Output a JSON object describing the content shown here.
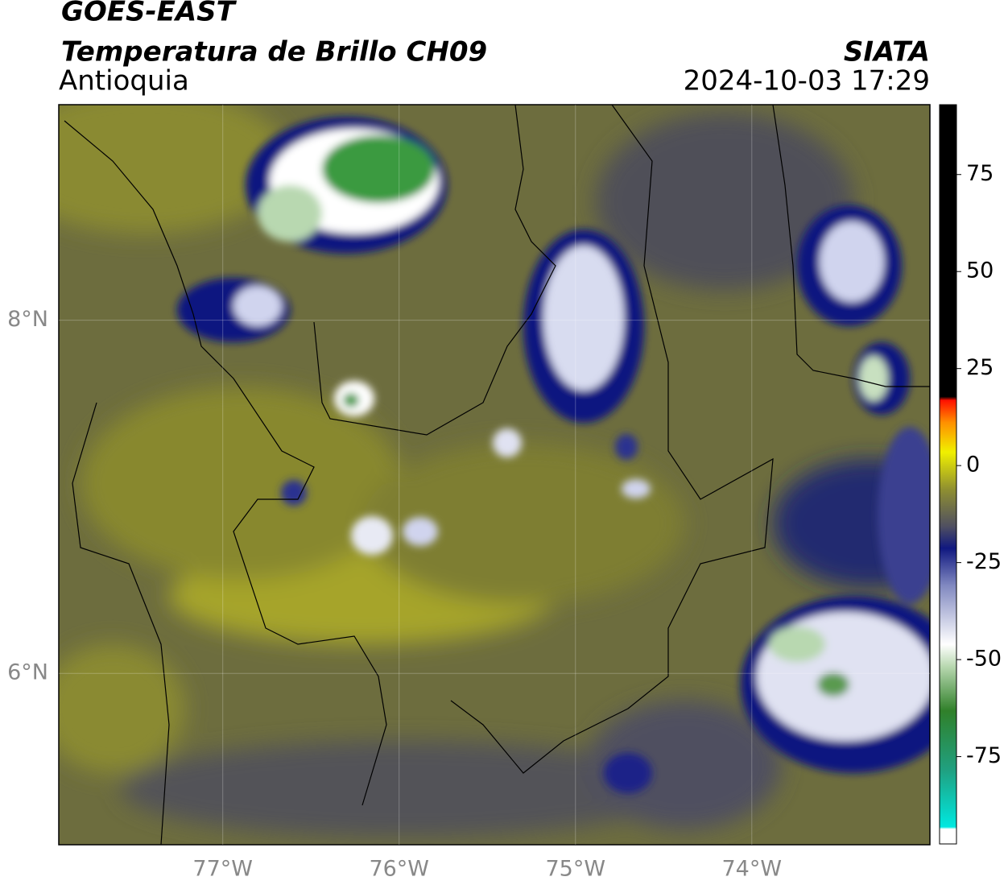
{
  "header": {
    "title": "GOES-EAST",
    "subtitle": "Temperatura de Brillo CH09",
    "region": "Antioquia",
    "source": "SIATA",
    "datetime": "2024-10-03 17:29"
  },
  "map": {
    "xlim": [
      -77.93,
      -72.99
    ],
    "ylim": [
      5.03,
      9.22
    ],
    "xticks": [
      {
        "value": -77,
        "label": "77°W"
      },
      {
        "value": -76,
        "label": "76°W"
      },
      {
        "value": -75,
        "label": "75°W"
      },
      {
        "value": -74,
        "label": "74°W"
      }
    ],
    "yticks": [
      {
        "value": 6,
        "label": "6°N"
      },
      {
        "value": 8,
        "label": "8°N"
      }
    ],
    "grid": true
  },
  "colorbar": {
    "lim": [
      -97.5,
      93
    ],
    "ticks": [
      -75,
      -50,
      -25,
      0,
      25,
      50,
      75
    ]
  }
}
